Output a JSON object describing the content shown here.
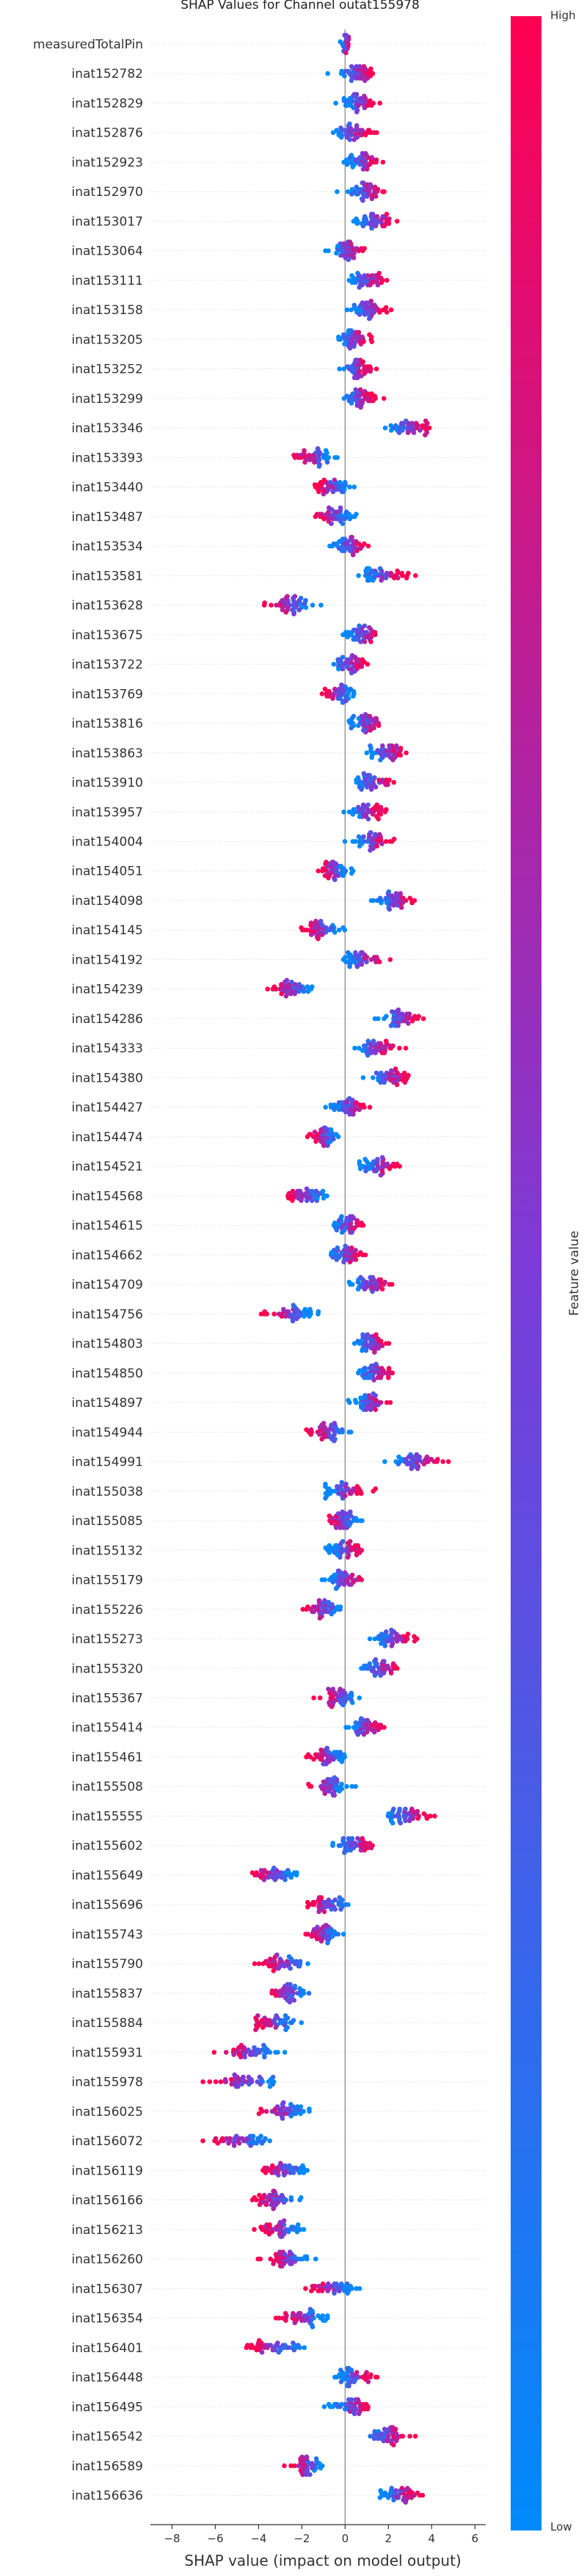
{
  "chart_data": {
    "type": "beeswarm",
    "title": "SHAP Values for Channel outat155978",
    "xlabel": "SHAP value (impact on model output)",
    "xlim": [
      -9,
      6.5
    ],
    "xticks": [
      -8,
      -6,
      -4,
      -2,
      0,
      2,
      4,
      6
    ],
    "colorbar": {
      "label": "Feature value",
      "high": "High",
      "low": "Low"
    },
    "colors": {
      "low": "#008afb",
      "high": "#ff0052",
      "zero_line": "#999999"
    },
    "features": [
      {
        "name": "measuredTotalPin",
        "center": 0.0,
        "spread": 0.25
      },
      {
        "name": "inat152782",
        "center": 0.5,
        "spread": 0.9
      },
      {
        "name": "inat152829",
        "center": 0.6,
        "spread": 0.8
      },
      {
        "name": "inat152876",
        "center": 0.3,
        "spread": 0.9
      },
      {
        "name": "inat152923",
        "center": 0.8,
        "spread": 0.7
      },
      {
        "name": "inat152970",
        "center": 0.9,
        "spread": 0.8
      },
      {
        "name": "inat153017",
        "center": 1.4,
        "spread": 0.9
      },
      {
        "name": "inat153064",
        "center": 0.1,
        "spread": 0.7
      },
      {
        "name": "inat153111",
        "center": 1.0,
        "spread": 0.8
      },
      {
        "name": "inat153158",
        "center": 1.1,
        "spread": 0.8
      },
      {
        "name": "inat153205",
        "center": 0.4,
        "spread": 0.7
      },
      {
        "name": "inat153252",
        "center": 0.5,
        "spread": 0.7
      },
      {
        "name": "inat153299",
        "center": 0.6,
        "spread": 0.8
      },
      {
        "name": "inat153346",
        "center": 3.0,
        "spread": 1.0
      },
      {
        "name": "inat153393",
        "center": -1.4,
        "spread": 1.0
      },
      {
        "name": "inat153440",
        "center": -0.6,
        "spread": 0.8
      },
      {
        "name": "inat153487",
        "center": -0.5,
        "spread": 0.8
      },
      {
        "name": "inat153534",
        "center": 0.2,
        "spread": 0.8
      },
      {
        "name": "inat153581",
        "center": 1.8,
        "spread": 0.9
      },
      {
        "name": "inat153628",
        "center": -2.5,
        "spread": 0.9
      },
      {
        "name": "inat153675",
        "center": 0.8,
        "spread": 0.7
      },
      {
        "name": "inat153722",
        "center": 0.2,
        "spread": 0.7
      },
      {
        "name": "inat153769",
        "center": -0.3,
        "spread": 0.7
      },
      {
        "name": "inat153816",
        "center": 1.0,
        "spread": 0.8
      },
      {
        "name": "inat153863",
        "center": 1.9,
        "spread": 0.9
      },
      {
        "name": "inat153910",
        "center": 1.3,
        "spread": 0.8
      },
      {
        "name": "inat153957",
        "center": 1.0,
        "spread": 0.8
      },
      {
        "name": "inat154004",
        "center": 1.2,
        "spread": 0.8
      },
      {
        "name": "inat154051",
        "center": -0.5,
        "spread": 0.7
      },
      {
        "name": "inat154098",
        "center": 2.3,
        "spread": 0.9
      },
      {
        "name": "inat154145",
        "center": -1.0,
        "spread": 0.8
      },
      {
        "name": "inat154192",
        "center": 0.8,
        "spread": 0.8
      },
      {
        "name": "inat154239",
        "center": -2.5,
        "spread": 1.0
      },
      {
        "name": "inat154286",
        "center": 2.6,
        "spread": 0.9
      },
      {
        "name": "inat154333",
        "center": 1.3,
        "spread": 0.9
      },
      {
        "name": "inat154380",
        "center": 2.0,
        "spread": 0.9
      },
      {
        "name": "inat154427",
        "center": 0.2,
        "spread": 0.8
      },
      {
        "name": "inat154474",
        "center": -1.0,
        "spread": 0.7
      },
      {
        "name": "inat154521",
        "center": 1.5,
        "spread": 0.8
      },
      {
        "name": "inat154568",
        "center": -1.8,
        "spread": 0.9
      },
      {
        "name": "inat154615",
        "center": 0.1,
        "spread": 0.8
      },
      {
        "name": "inat154662",
        "center": 0.0,
        "spread": 0.8
      },
      {
        "name": "inat154709",
        "center": 1.2,
        "spread": 0.9
      },
      {
        "name": "inat154756",
        "center": -2.5,
        "spread": 1.0
      },
      {
        "name": "inat154803",
        "center": 1.2,
        "spread": 0.8
      },
      {
        "name": "inat154850",
        "center": 1.4,
        "spread": 0.9
      },
      {
        "name": "inat154897",
        "center": 1.2,
        "spread": 0.8
      },
      {
        "name": "inat154944",
        "center": -0.8,
        "spread": 0.8
      },
      {
        "name": "inat154991",
        "center": 3.3,
        "spread": 1.1
      },
      {
        "name": "inat155038",
        "center": 0.0,
        "spread": 0.9
      },
      {
        "name": "inat155085",
        "center": -0.1,
        "spread": 0.8
      },
      {
        "name": "inat155132",
        "center": 0.0,
        "spread": 0.8
      },
      {
        "name": "inat155179",
        "center": 0.0,
        "spread": 0.8
      },
      {
        "name": "inat155226",
        "center": -1.0,
        "spread": 0.9
      },
      {
        "name": "inat155273",
        "center": 2.3,
        "spread": 0.9
      },
      {
        "name": "inat155320",
        "center": 1.6,
        "spread": 0.8
      },
      {
        "name": "inat155367",
        "center": -0.3,
        "spread": 0.8
      },
      {
        "name": "inat155414",
        "center": 0.9,
        "spread": 0.8
      },
      {
        "name": "inat155461",
        "center": -0.8,
        "spread": 0.8
      },
      {
        "name": "inat155508",
        "center": -0.7,
        "spread": 0.8
      },
      {
        "name": "inat155555",
        "center": 2.9,
        "spread": 1.0
      },
      {
        "name": "inat155602",
        "center": 0.4,
        "spread": 0.8
      },
      {
        "name": "inat155649",
        "center": -3.3,
        "spread": 1.1
      },
      {
        "name": "inat155696",
        "center": -0.8,
        "spread": 0.8
      },
      {
        "name": "inat155743",
        "center": -1.0,
        "spread": 0.8
      },
      {
        "name": "inat155790",
        "center": -2.8,
        "spread": 1.0
      },
      {
        "name": "inat155837",
        "center": -2.6,
        "spread": 1.0
      },
      {
        "name": "inat155884",
        "center": -3.3,
        "spread": 1.0
      },
      {
        "name": "inat155931",
        "center": -4.4,
        "spread": 1.3
      },
      {
        "name": "inat155978",
        "center": -4.6,
        "spread": 1.5
      },
      {
        "name": "inat156025",
        "center": -2.8,
        "spread": 1.0
      },
      {
        "name": "inat156072",
        "center": -4.8,
        "spread": 1.3
      },
      {
        "name": "inat156119",
        "center": -2.8,
        "spread": 1.0
      },
      {
        "name": "inat156166",
        "center": -3.2,
        "spread": 1.1
      },
      {
        "name": "inat156213",
        "center": -3.0,
        "spread": 1.0
      },
      {
        "name": "inat156260",
        "center": -2.6,
        "spread": 1.0
      },
      {
        "name": "inat156307",
        "center": -0.6,
        "spread": 1.0
      },
      {
        "name": "inat156354",
        "center": -1.9,
        "spread": 1.0
      },
      {
        "name": "inat156401",
        "center": -3.2,
        "spread": 1.2
      },
      {
        "name": "inat156448",
        "center": 0.5,
        "spread": 0.9
      },
      {
        "name": "inat156495",
        "center": 0.3,
        "spread": 0.8
      },
      {
        "name": "inat156542",
        "center": 1.9,
        "spread": 0.9
      },
      {
        "name": "inat156589",
        "center": -1.8,
        "spread": 0.7
      },
      {
        "name": "inat156636",
        "center": 2.5,
        "spread": 0.9
      }
    ]
  }
}
